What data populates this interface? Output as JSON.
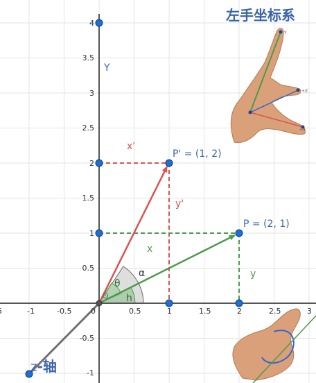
{
  "axes": {
    "x_ticks": [
      "-0.5",
      "0",
      "0.5",
      "1",
      "1.5",
      "2",
      "2.5",
      "3"
    ],
    "y_ticks": [
      "4",
      "3.5",
      "3",
      "2.5",
      "2",
      "1.5",
      "1",
      "0.5",
      "-0.5",
      "-1"
    ],
    "y_axis_label": "Y",
    "z_axis_letter": "Z",
    "z_axis_suffix": "-轴",
    "neg_one": "-1"
  },
  "labels": {
    "p_point": "P  = (2, 1)",
    "p_prime_point": "P' = (1, 2)",
    "x_prime": "x'",
    "y_prime": "y'",
    "x": "x",
    "y": "y",
    "alpha": "α",
    "theta": "θ",
    "h": "h",
    "origin_marker": "⊙",
    "hand_title": "左手坐标系",
    "finger_y": "Y",
    "finger_z": "+Z",
    "finger_x": "+X"
  },
  "colors": {
    "red": "#d9534f",
    "green": "#4c9a4c",
    "point": "#1f6fd1",
    "axis": "#555555",
    "grid": "#d9d9d9",
    "label_blue": "#3a64a8"
  },
  "points": {
    "P": {
      "x": 2,
      "y": 1
    },
    "P_prime": {
      "x": 1,
      "y": 2
    },
    "Z_end": {
      "x": -1,
      "y": -1
    }
  }
}
